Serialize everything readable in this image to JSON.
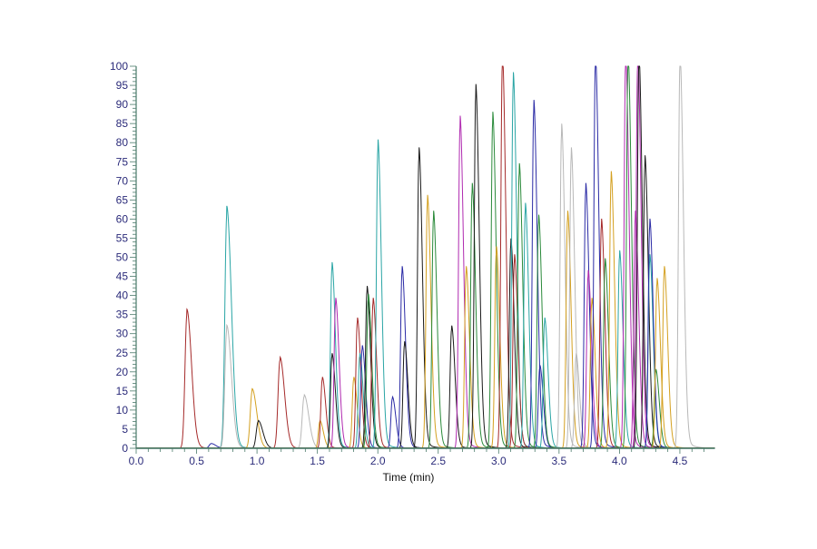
{
  "chart_data": {
    "type": "line",
    "subtype": "chromatogram-overlay",
    "title": "",
    "xlabel": "Time (min)",
    "ylabel": "",
    "xlim": [
      0.0,
      4.79
    ],
    "ylim": [
      0,
      100
    ],
    "x_ticks": [
      "0.0",
      "0.5",
      "1.0",
      "1.5",
      "2.0",
      "2.5",
      "3.0",
      "3.5",
      "4.0",
      "4.5"
    ],
    "x_tick_values": [
      0.0,
      0.5,
      1.0,
      1.5,
      2.0,
      2.5,
      3.0,
      3.5,
      4.0,
      4.5
    ],
    "x_minor_step": 0.1,
    "y_ticks": [
      "0",
      "5",
      "10",
      "15",
      "20",
      "25",
      "30",
      "35",
      "40",
      "45",
      "50",
      "55",
      "60",
      "65",
      "70",
      "75",
      "80",
      "85",
      "90",
      "95",
      "100"
    ],
    "y_tick_values": [
      0,
      5,
      10,
      15,
      20,
      25,
      30,
      35,
      40,
      45,
      50,
      55,
      60,
      65,
      70,
      75,
      80,
      85,
      90,
      95,
      100
    ],
    "y_minor_step": 1,
    "grid": false,
    "legend": null,
    "colors": {
      "red": "#a52a2a",
      "blue": "#2a2aa5",
      "teal": "#2aa5a5",
      "gray": "#b8b8b8",
      "orange": "#d4a020",
      "black": "#1a1a1a",
      "purple": "#b02ab0",
      "green": "#2a8a3a",
      "axis": "#4a7a6a",
      "tick_label": "#2b2b7a"
    },
    "peaks": [
      {
        "t": 0.42,
        "h": 35,
        "c": "red"
      },
      {
        "t": 0.62,
        "h": 1.2,
        "c": "blue"
      },
      {
        "t": 0.75,
        "h": 61,
        "c": "teal"
      },
      {
        "t": 0.75,
        "h": 31,
        "c": "gray"
      },
      {
        "t": 0.96,
        "h": 15,
        "c": "orange"
      },
      {
        "t": 1.01,
        "h": 7,
        "c": "black"
      },
      {
        "t": 1.19,
        "h": 23,
        "c": "red"
      },
      {
        "t": 1.39,
        "h": 13.5,
        "c": "gray"
      },
      {
        "t": 1.52,
        "h": 7,
        "c": "orange"
      },
      {
        "t": 1.54,
        "h": 18,
        "c": "red"
      },
      {
        "t": 1.62,
        "h": 47,
        "c": "teal"
      },
      {
        "t": 1.62,
        "h": 24,
        "c": "black"
      },
      {
        "t": 1.65,
        "h": 38,
        "c": "purple"
      },
      {
        "t": 1.8,
        "h": 18,
        "c": "orange"
      },
      {
        "t": 1.83,
        "h": 33,
        "c": "red"
      },
      {
        "t": 1.85,
        "h": 24,
        "c": "teal"
      },
      {
        "t": 1.87,
        "h": 26,
        "c": "blue"
      },
      {
        "t": 1.91,
        "h": 41,
        "c": "black"
      },
      {
        "t": 1.92,
        "h": 39,
        "c": "green"
      },
      {
        "t": 1.96,
        "h": 38,
        "c": "red"
      },
      {
        "t": 2.0,
        "h": 78,
        "c": "teal"
      },
      {
        "t": 2.12,
        "h": 13,
        "c": "blue"
      },
      {
        "t": 2.2,
        "h": 46,
        "c": "blue"
      },
      {
        "t": 2.22,
        "h": 27,
        "c": "black"
      },
      {
        "t": 2.34,
        "h": 76,
        "c": "black"
      },
      {
        "t": 2.41,
        "h": 64,
        "c": "orange"
      },
      {
        "t": 2.46,
        "h": 60,
        "c": "green"
      },
      {
        "t": 2.61,
        "h": 31,
        "c": "black"
      },
      {
        "t": 2.68,
        "h": 84,
        "c": "purple"
      },
      {
        "t": 2.73,
        "h": 46,
        "c": "orange"
      },
      {
        "t": 2.78,
        "h": 67,
        "c": "green"
      },
      {
        "t": 2.81,
        "h": 92,
        "c": "black"
      },
      {
        "t": 2.95,
        "h": 85,
        "c": "green"
      },
      {
        "t": 2.98,
        "h": 51,
        "c": "orange"
      },
      {
        "t": 3.03,
        "h": 100,
        "c": "red"
      },
      {
        "t": 3.1,
        "h": 53,
        "c": "black"
      },
      {
        "t": 3.12,
        "h": 95,
        "c": "teal"
      },
      {
        "t": 3.13,
        "h": 49,
        "c": "red"
      },
      {
        "t": 3.17,
        "h": 72,
        "c": "green"
      },
      {
        "t": 3.22,
        "h": 62,
        "c": "teal"
      },
      {
        "t": 3.29,
        "h": 88,
        "c": "blue"
      },
      {
        "t": 3.34,
        "h": 21,
        "c": "blue"
      },
      {
        "t": 3.33,
        "h": 59,
        "c": "green"
      },
      {
        "t": 3.38,
        "h": 33,
        "c": "teal"
      },
      {
        "t": 3.52,
        "h": 82,
        "c": "gray"
      },
      {
        "t": 3.57,
        "h": 60,
        "c": "orange"
      },
      {
        "t": 3.6,
        "h": 76,
        "c": "gray"
      },
      {
        "t": 3.64,
        "h": 24,
        "c": "gray"
      },
      {
        "t": 3.72,
        "h": 67,
        "c": "blue"
      },
      {
        "t": 3.74,
        "h": 45,
        "c": "purple"
      },
      {
        "t": 3.77,
        "h": 38,
        "c": "orange"
      },
      {
        "t": 3.8,
        "h": 100,
        "c": "blue"
      },
      {
        "t": 3.85,
        "h": 58,
        "c": "red"
      },
      {
        "t": 3.88,
        "h": 48,
        "c": "green"
      },
      {
        "t": 3.93,
        "h": 70,
        "c": "orange"
      },
      {
        "t": 4.0,
        "h": 50,
        "c": "teal"
      },
      {
        "t": 4.05,
        "h": 100,
        "c": "purple"
      },
      {
        "t": 4.07,
        "h": 100,
        "c": "green"
      },
      {
        "t": 4.13,
        "h": 60,
        "c": "purple"
      },
      {
        "t": 4.15,
        "h": 100,
        "c": "purple"
      },
      {
        "t": 4.16,
        "h": 100,
        "c": "black"
      },
      {
        "t": 4.21,
        "h": 74,
        "c": "black"
      },
      {
        "t": 4.25,
        "h": 49,
        "c": "teal"
      },
      {
        "t": 4.25,
        "h": 58,
        "c": "blue"
      },
      {
        "t": 4.3,
        "h": 20,
        "c": "green"
      },
      {
        "t": 4.31,
        "h": 43,
        "c": "orange"
      },
      {
        "t": 4.37,
        "h": 46,
        "c": "orange"
      },
      {
        "t": 4.5,
        "h": 100,
        "c": "gray"
      }
    ]
  }
}
